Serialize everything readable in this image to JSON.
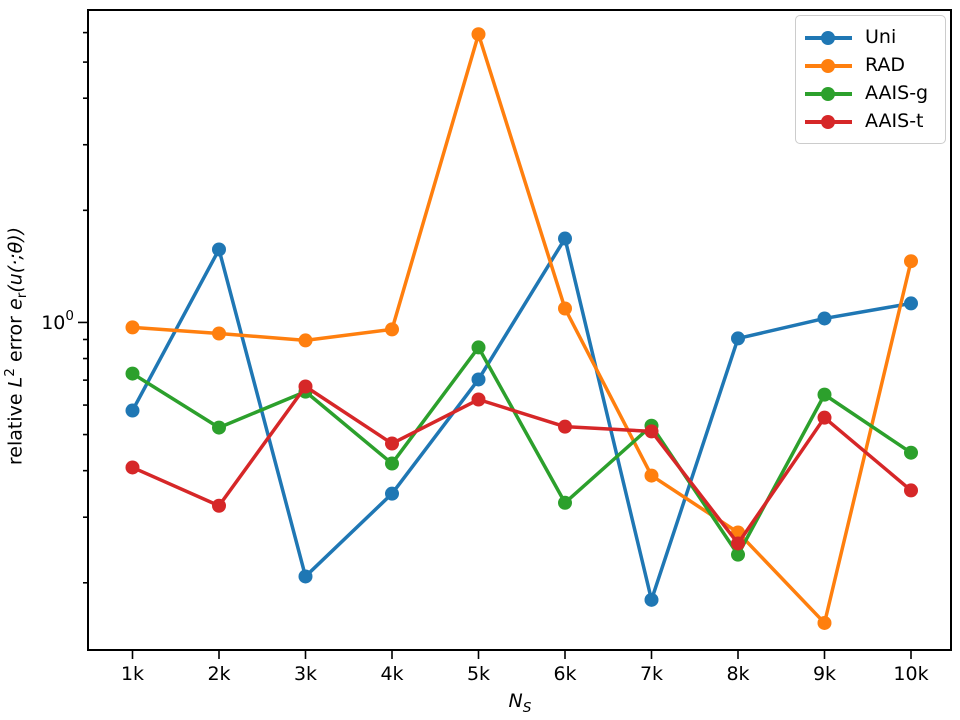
{
  "chart_data": {
    "type": "line",
    "title": "",
    "grid": false,
    "x_axis": {
      "label_base": "N",
      "label_sub": "S",
      "categories": [
        "1k",
        "2k",
        "3k",
        "4k",
        "5k",
        "6k",
        "7k",
        "8k",
        "9k",
        "10k"
      ],
      "values": [
        1000,
        2000,
        3000,
        4000,
        5000,
        6000,
        7000,
        8000,
        9000,
        10000
      ]
    },
    "y_axis": {
      "label_before": "relative ",
      "label_L": "L",
      "label_L_sup": "2",
      "label_mid": " error ",
      "label_e": "e",
      "label_e_sub": "r",
      "label_tail": "(u(·;θ))",
      "scale": "log",
      "lim": [
        0.132,
        6.9
      ],
      "major_tick": {
        "value": 1,
        "label_base": "10",
        "label_exp": "0"
      },
      "minor_tick_values": [
        6,
        5,
        4,
        3,
        2,
        0.9,
        0.8,
        0.7,
        0.6,
        0.5,
        0.4,
        0.3,
        0.2
      ]
    },
    "legend": {
      "position": "upper-right"
    },
    "series": [
      {
        "name": "Uni",
        "color": "#1f77b4",
        "marker": "circle",
        "values": [
          0.58,
          1.57,
          0.208,
          0.347,
          0.703,
          1.68,
          0.18,
          0.906,
          1.025,
          1.125
        ]
      },
      {
        "name": "RAD",
        "color": "#ff7f0e",
        "marker": "circle",
        "values": [
          0.97,
          0.934,
          0.895,
          0.958,
          5.94,
          1.09,
          0.388,
          0.273,
          0.156,
          1.46
        ]
      },
      {
        "name": "AAIS-g",
        "color": "#2ca02c",
        "marker": "circle",
        "values": [
          0.729,
          0.522,
          0.652,
          0.418,
          0.857,
          0.328,
          0.528,
          0.238,
          0.64,
          0.447
        ]
      },
      {
        "name": "AAIS-t",
        "color": "#d62728",
        "marker": "circle",
        "values": [
          0.408,
          0.322,
          0.673,
          0.473,
          0.621,
          0.525,
          0.51,
          0.255,
          0.555,
          0.354
        ]
      }
    ]
  }
}
